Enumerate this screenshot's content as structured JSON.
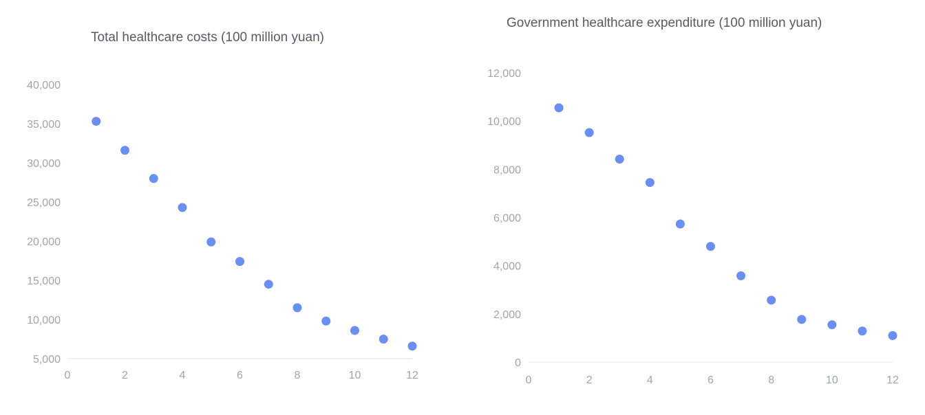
{
  "chart_data": [
    {
      "type": "scatter",
      "title": "Total healthcare costs (100 million yuan)",
      "xlabel": "",
      "ylabel": "",
      "xlim": [
        0,
        12
      ],
      "ylim": [
        5000,
        40000
      ],
      "xticks": [
        0,
        2,
        4,
        6,
        8,
        10,
        12
      ],
      "yticks": [
        5000,
        10000,
        15000,
        20000,
        25000,
        30000,
        35000,
        40000
      ],
      "grid": false,
      "color": "#6a8ff0",
      "x": [
        1,
        2,
        3,
        4,
        5,
        6,
        7,
        8,
        9,
        10,
        11,
        12
      ],
      "y": [
        35300,
        31600,
        28000,
        24300,
        19900,
        17400,
        14500,
        11500,
        9800,
        8600,
        7500,
        6600
      ]
    },
    {
      "type": "scatter",
      "title": "Government healthcare expenditure (100 million yuan)",
      "xlabel": "",
      "ylabel": "",
      "xlim": [
        0,
        12
      ],
      "ylim": [
        0,
        12000
      ],
      "xticks": [
        0,
        2,
        4,
        6,
        8,
        10,
        12
      ],
      "yticks": [
        0,
        2000,
        4000,
        6000,
        8000,
        10000,
        12000
      ],
      "grid": false,
      "color": "#6a8ff0",
      "x": [
        1,
        2,
        3,
        4,
        5,
        6,
        7,
        8,
        9,
        10,
        11,
        12
      ],
      "y": [
        10550,
        9520,
        8420,
        7450,
        5730,
        4800,
        3580,
        2570,
        1770,
        1550,
        1290,
        1100
      ]
    }
  ]
}
